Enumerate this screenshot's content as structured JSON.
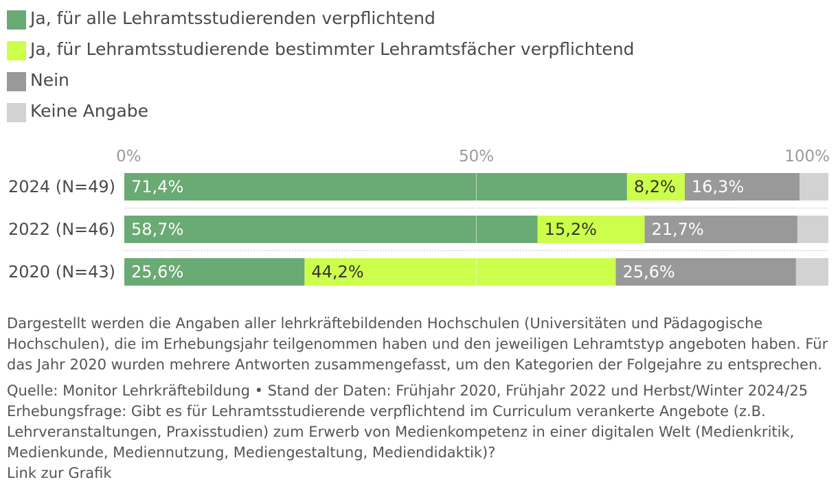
{
  "legend": {
    "items": [
      {
        "label": "Ja, für alle Lehramtsstudierenden verpflichtend",
        "color": "#6aaa74"
      },
      {
        "label": "Ja, für Lehramtsstudierende bestimmter Lehramtsfächer verpflichtend",
        "color": "#ccff4c"
      },
      {
        "label": "Nein",
        "color": "#999999"
      },
      {
        "label": "Keine Angabe",
        "color": "#d2d2d2"
      }
    ]
  },
  "chart_data": {
    "type": "bar",
    "orientation": "horizontal",
    "stacked": true,
    "categories": [
      "2024 (N=49)",
      "2022 (N=46)",
      "2020 (N=43)"
    ],
    "series": [
      {
        "name": "Ja, für alle Lehramtsstudierenden verpflichtend",
        "values": [
          71.4,
          58.7,
          25.6
        ],
        "labels": [
          "71,4%",
          "58,7%",
          "25,6%"
        ],
        "color": "#6aaa74",
        "label_color": "#ffffff"
      },
      {
        "name": "Ja, für Lehramtsstudierende bestimmter Lehramtsfächer verpflichtend",
        "values": [
          8.2,
          15.2,
          44.2
        ],
        "labels": [
          "8,2%",
          "15,2%",
          "44,2%"
        ],
        "color": "#ccff4c",
        "label_color": "#333333"
      },
      {
        "name": "Nein",
        "values": [
          16.3,
          21.7,
          25.6
        ],
        "labels": [
          "16,3%",
          "21,7%",
          "25,6%"
        ],
        "color": "#999999",
        "label_color": "#ffffff"
      },
      {
        "name": "Keine Angabe",
        "values": [
          4.1,
          4.4,
          4.6
        ],
        "labels": [
          "",
          "",
          ""
        ],
        "color": "#d2d2d2",
        "label_color": "#ffffff"
      }
    ],
    "xlim": [
      0,
      100
    ],
    "ticks": [
      0,
      50,
      100
    ],
    "tick_labels": [
      "0%",
      "50%",
      "100%"
    ],
    "gridline_at": 50
  },
  "notes": {
    "description": "Dargestellt werden die Angaben aller lehrkräftebildenden Hochschulen (Universitäten und Pädagogische Hochschulen), die im Erhebungsjahr teilgenommen haben und den jeweiligen Lehramtstyp angeboten haben. Für das Jahr 2020 wurden mehrere Antworten zusammengefasst, um den Kategorien der Folgejahre zu entsprechen.",
    "source": "Quelle: Monitor Lehrkräftebildung • Stand der Daten: Frühjahr 2020, Frühjahr 2022 und Herbst/Winter 2024/25",
    "question": "Erhebungsfrage: Gibt es für Lehramtsstudierende verpflichtend im Curriculum verankerte Angebote (z.B. Lehrveranstaltungen, Praxisstudien) zum Erwerb von Medienkompetenz in einer digitalen Welt (Medienkritik, Medienkunde, Mediennutzung, Mediengestaltung, Mediendidaktik)?",
    "link": "Link zur Grafik"
  }
}
